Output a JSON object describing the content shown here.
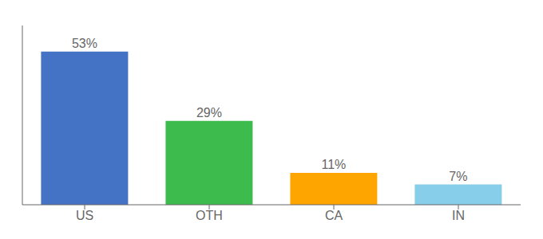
{
  "chart_data": {
    "type": "bar",
    "categories": [
      "US",
      "OTH",
      "CA",
      "IN"
    ],
    "values": [
      53,
      29,
      11,
      7
    ],
    "value_labels": [
      "53%",
      "29%",
      "11%",
      "7%"
    ],
    "data_labels": true,
    "colors": [
      "#4472c4",
      "#3dbb4c",
      "#ffa500",
      "#87ceeb"
    ],
    "ylim": [
      0,
      62
    ],
    "tick_labels": "x",
    "grid": false
  }
}
